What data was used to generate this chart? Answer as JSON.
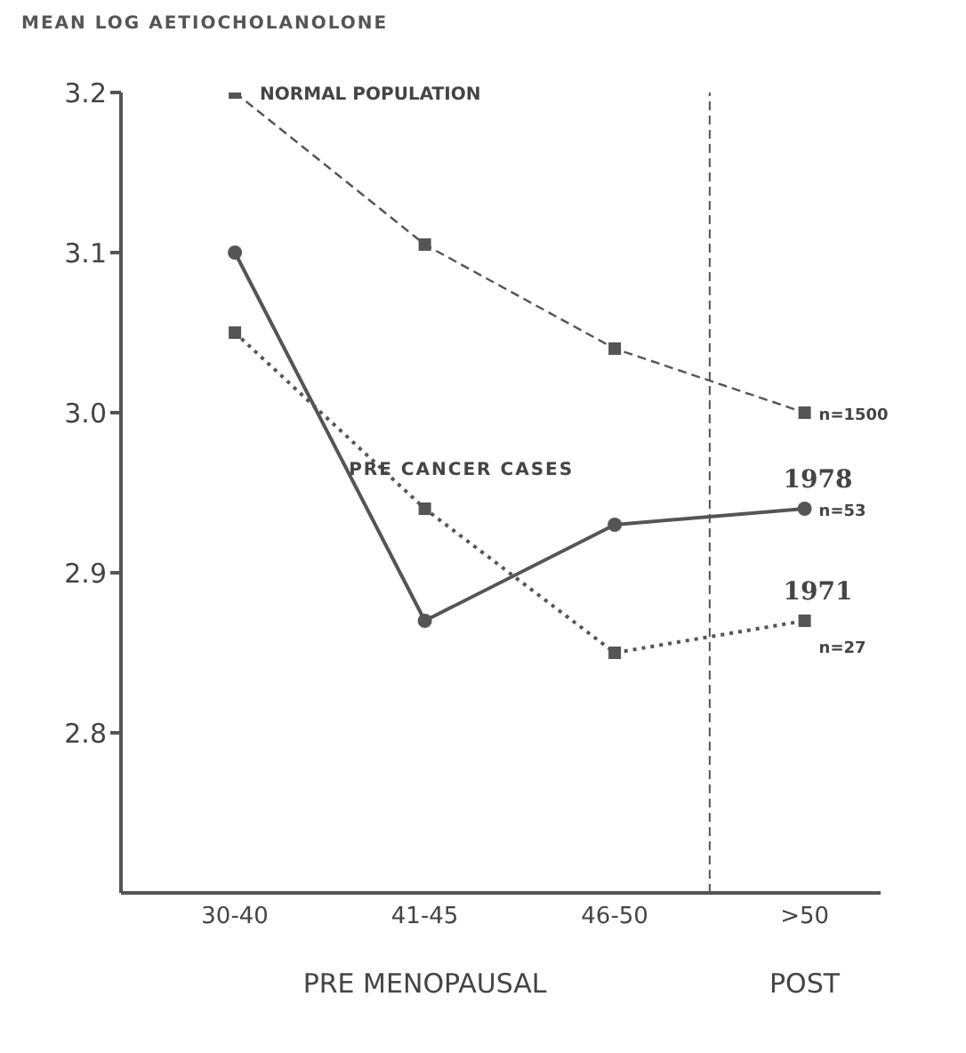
{
  "chart_data": {
    "type": "line",
    "ylabel": "MEAN LOG AETIOCHOLANOLONE",
    "xlabel": "PRE MENOPAUSAL",
    "categories": [
      "30-40",
      "41-45",
      "46-50",
      ">50"
    ],
    "series": [
      {
        "name": "NORMAL POPULATION",
        "color": "#555555",
        "values": [
          3.2,
          3.105,
          3.04,
          3.0
        ],
        "line_style": "dashed",
        "marker": "square"
      },
      {
        "name": "1978",
        "color": "#555555",
        "values": [
          3.1,
          2.87,
          2.93,
          2.94
        ],
        "line_style": "solid",
        "marker": "circle"
      },
      {
        "name": "1971",
        "color": "#555555",
        "values": [
          3.05,
          2.94,
          2.85,
          2.87
        ],
        "line_style": "dotted",
        "marker": "square"
      }
    ],
    "ylim": [
      2.7,
      3.2
    ],
    "yticks": [
      2.8,
      2.9,
      {
        "value": 3.0,
        "label": "3.0"
      },
      3.1,
      3.2
    ],
    "annotations": [
      "PRE CANCER CASES",
      "POST",
      {
        "text": "n=1500",
        "x": ">50",
        "y": 3.0
      },
      {
        "text": "n=53",
        "x": ">50",
        "y": 2.94
      },
      {
        "text": "n=27",
        "x": ">50",
        "y": 2.87
      }
    ]
  }
}
